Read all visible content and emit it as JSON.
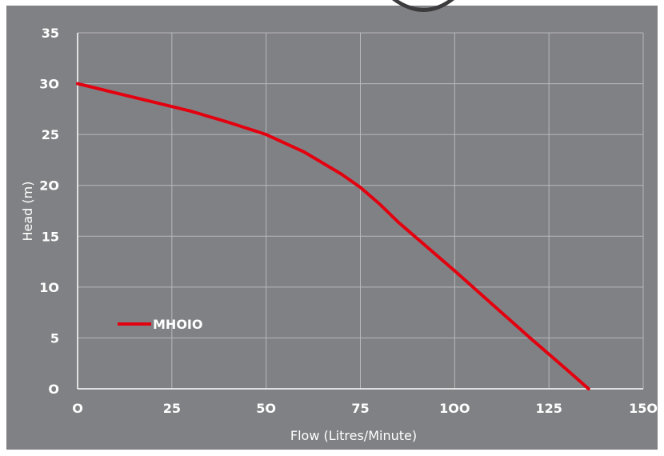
{
  "chart_data": {
    "type": "line",
    "title": "",
    "xlabel": "Flow (Litres/Minute)",
    "ylabel": "Head (m)",
    "xlim": [
      0,
      150
    ],
    "ylim": [
      0,
      35
    ],
    "x_ticks": [
      "O",
      "25",
      "5O",
      "75",
      "1OO",
      "125",
      "15O"
    ],
    "y_ticks": [
      "O",
      "5",
      "1O",
      "15",
      "2O",
      "25",
      "3O",
      "35"
    ],
    "grid": true,
    "legend_position": "bottom-left",
    "series": [
      {
        "name": "MHOIO",
        "color": "#e3000f",
        "x": [
          0,
          10,
          20,
          30,
          40,
          50,
          60,
          70,
          75,
          80,
          85,
          90,
          100,
          110,
          120,
          130,
          135.5
        ],
        "y": [
          30,
          29.1,
          28.2,
          27.3,
          26.2,
          25,
          23.3,
          21.1,
          19.8,
          18.2,
          16.4,
          14.8,
          11.6,
          8.3,
          5,
          1.8,
          0
        ]
      }
    ]
  }
}
